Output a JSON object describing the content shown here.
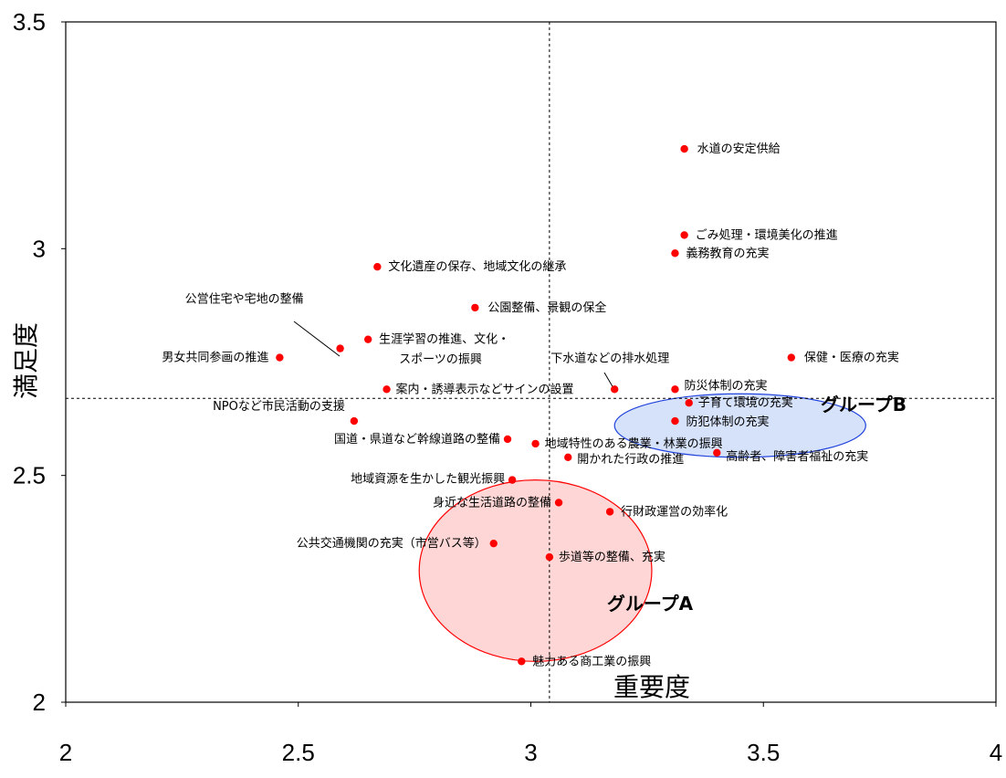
{
  "chart_data": {
    "type": "scatter",
    "xlabel": "重要度",
    "ylabel": "満足度",
    "xlim": [
      2,
      4
    ],
    "ylim": [
      2,
      3.5
    ],
    "x_ticks": [
      "2",
      "2.5",
      "3",
      "3.5",
      "4"
    ],
    "y_ticks": [
      "2",
      "2.5",
      "3",
      "3.5"
    ],
    "reference_lines": {
      "x": 3.04,
      "y": 2.67
    },
    "point_color": "#ff0000",
    "points": [
      {
        "label": "水道の安定供給",
        "x": 3.33,
        "y": 3.22
      },
      {
        "label": "ごみ処理・環境美化の推進",
        "x": 3.33,
        "y": 3.03
      },
      {
        "label": "義務教育の充実",
        "x": 3.31,
        "y": 2.99
      },
      {
        "label": "文化遺産の保存、地域文化の継承",
        "x": 2.67,
        "y": 2.96
      },
      {
        "label": "公園整備、景観の保全",
        "x": 2.88,
        "y": 2.87
      },
      {
        "label": "公営住宅や宅地の整備",
        "x": 2.59,
        "y": 2.78
      },
      {
        "label": "生涯学習の推進、文化・スポーツの振興",
        "x": 2.65,
        "y": 2.8
      },
      {
        "label": "男女共同参画の推進",
        "x": 2.46,
        "y": 2.76
      },
      {
        "label": "下水道などの排水処理",
        "x": 3.18,
        "y": 2.69
      },
      {
        "label": "保健・医療の充実",
        "x": 3.56,
        "y": 2.76
      },
      {
        "label": "防災体制の充実",
        "x": 3.31,
        "y": 2.69
      },
      {
        "label": "案内・誘導表示などサインの設置",
        "x": 2.69,
        "y": 2.69
      },
      {
        "label": "子育て環境の充実",
        "x": 3.34,
        "y": 2.66
      },
      {
        "label": "NPOなど市民活動の支援",
        "x": 2.62,
        "y": 2.62
      },
      {
        "label": "防犯体制の充実",
        "x": 3.31,
        "y": 2.62
      },
      {
        "label": "国道・県道など幹線道路の整備",
        "x": 2.95,
        "y": 2.58
      },
      {
        "label": "地域特性のある農業・林業の振興",
        "x": 3.01,
        "y": 2.57
      },
      {
        "label": "高齢者、障害者福祉の充実",
        "x": 3.4,
        "y": 2.55
      },
      {
        "label": "開かれた行政の推進",
        "x": 3.08,
        "y": 2.54
      },
      {
        "label": "地域資源を生かした観光振興",
        "x": 2.96,
        "y": 2.49
      },
      {
        "label": "身近な生活道路の整備",
        "x": 3.06,
        "y": 2.44
      },
      {
        "label": "行財政運営の効率化",
        "x": 3.17,
        "y": 2.42
      },
      {
        "label": "公共交通機関の充実（市営バス等）",
        "x": 2.92,
        "y": 2.35
      },
      {
        "label": "歩道等の整備、充実",
        "x": 3.04,
        "y": 2.32
      },
      {
        "label": "魅力ある商工業の振興",
        "x": 2.98,
        "y": 2.09
      }
    ],
    "groups": [
      {
        "label": "グループA",
        "cx": 3.01,
        "cy": 2.29,
        "rx": 0.25,
        "ry": 0.2,
        "fill": "#ffc8c8",
        "stroke": "#ff0000"
      },
      {
        "label": "グループB",
        "cx": 3.45,
        "cy": 2.61,
        "rx": 0.27,
        "ry": 0.07,
        "fill": "#c8d8f8",
        "stroke": "#2244dd"
      }
    ]
  }
}
